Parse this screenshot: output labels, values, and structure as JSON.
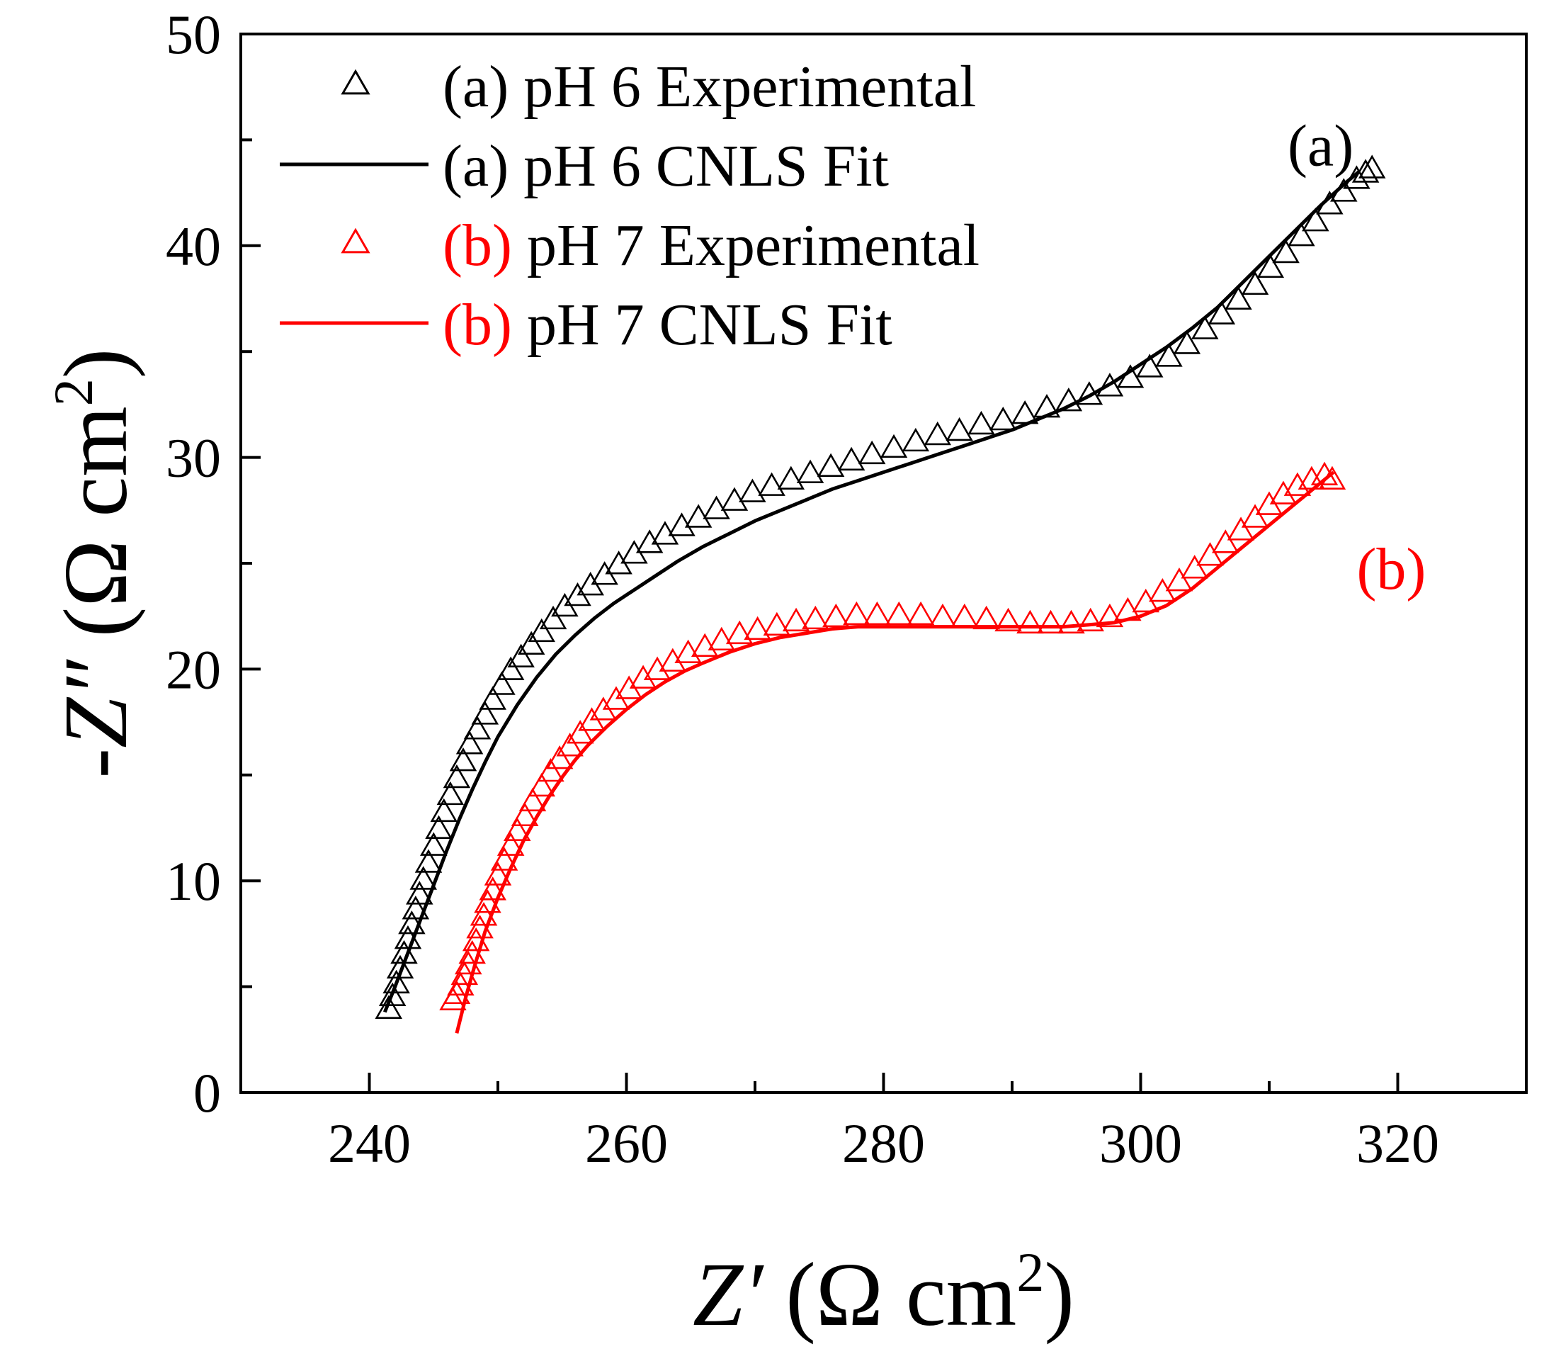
{
  "chart_data": {
    "type": "scatter",
    "title": "",
    "xlabel": "Z′ (Ω cm2)",
    "ylabel": "-Z″ (Ω cm2)",
    "xlabel_parts": {
      "var": "Z′",
      "paren_open": " (Ω cm",
      "sup": "2",
      "paren_close": ")"
    },
    "ylabel_parts": {
      "var": "-Z″",
      "paren_open": " (Ω cm",
      "sup": "2",
      "paren_close": ")"
    },
    "xlim": [
      230,
      330
    ],
    "ylim": [
      0,
      50
    ],
    "x_ticks": [
      240,
      260,
      280,
      300,
      320
    ],
    "y_ticks": [
      0,
      10,
      20,
      30,
      40,
      50
    ],
    "x_tick_labels": [
      "240",
      "260",
      "280",
      "300",
      "320"
    ],
    "y_tick_labels": [
      "0",
      "10",
      "20",
      "30",
      "40",
      "50"
    ],
    "grid": false,
    "legend_position": "top-left",
    "legend": [
      {
        "tag": "(a)",
        "text": " pH 6 Experimental",
        "color": "#000000",
        "tag_color": "#000000",
        "marker": "triangle-open"
      },
      {
        "tag": "(a)",
        "text": " pH 6 CNLS Fit",
        "color": "#000000",
        "tag_color": "#000000",
        "marker": "line"
      },
      {
        "tag": "(b)",
        "text": " pH 7 Experimental",
        "color": "#ff0000",
        "tag_color": "#ff0000",
        "marker": "triangle-open"
      },
      {
        "tag": "(b)",
        "text": " pH 7 CNLS Fit",
        "color": "#ff0000",
        "tag_color": "#ff0000",
        "marker": "line"
      }
    ],
    "annotations": [
      {
        "text": "(a)",
        "x": 314,
        "y": 43.8,
        "color": "#000000"
      },
      {
        "text": "(b)",
        "x": 319.5,
        "y": 23.8,
        "color": "#ff0000"
      }
    ],
    "series": [
      {
        "name": "(a) pH 6 Experimental",
        "kind": "markers",
        "color": "#000000",
        "x": [
          241.5,
          241.8,
          242.1,
          242.4,
          242.7,
          243.0,
          243.3,
          243.6,
          243.9,
          244.2,
          244.6,
          245.0,
          245.4,
          245.8,
          246.3,
          246.8,
          247.3,
          247.8,
          248.4,
          249.0,
          249.6,
          250.3,
          251.0,
          251.8,
          252.6,
          253.4,
          254.3,
          255.2,
          256.2,
          257.2,
          258.3,
          259.4,
          260.6,
          261.8,
          263.0,
          264.3,
          265.6,
          267.0,
          268.4,
          269.8,
          271.3,
          272.8,
          274.3,
          275.9,
          277.5,
          279.1,
          280.8,
          282.5,
          284.2,
          285.9,
          287.6,
          289.3,
          291.0,
          292.7,
          294.4,
          296.0,
          297.6,
          299.2,
          300.7,
          302.2,
          303.6,
          305.0,
          306.3,
          307.6,
          308.9,
          310.1,
          311.3,
          312.5,
          313.6,
          314.7,
          315.8,
          316.8,
          317.5,
          318.0
        ],
        "y": [
          3.9,
          4.5,
          5.1,
          5.8,
          6.5,
          7.2,
          7.9,
          8.6,
          9.3,
          10.0,
          10.8,
          11.6,
          12.4,
          13.2,
          14.0,
          14.8,
          15.6,
          16.4,
          17.1,
          17.8,
          18.5,
          19.2,
          19.9,
          20.5,
          21.1,
          21.7,
          22.3,
          22.9,
          23.4,
          23.9,
          24.4,
          24.9,
          25.4,
          25.9,
          26.3,
          26.7,
          27.1,
          27.5,
          27.9,
          28.3,
          28.6,
          28.9,
          29.2,
          29.5,
          29.8,
          30.1,
          30.4,
          30.7,
          31.0,
          31.2,
          31.5,
          31.7,
          32.0,
          32.3,
          32.6,
          32.9,
          33.3,
          33.7,
          34.2,
          34.7,
          35.3,
          36.0,
          36.7,
          37.4,
          38.1,
          38.9,
          39.6,
          40.4,
          41.1,
          41.9,
          42.5,
          43.1,
          43.4,
          43.6
        ]
      },
      {
        "name": "(a) pH 6 CNLS Fit",
        "kind": "line",
        "color": "#000000",
        "x": [
          241.2,
          242.0,
          243.0,
          244.0,
          245.0,
          246.0,
          247.0,
          248.0,
          249.0,
          250.0,
          251.5,
          253.0,
          254.5,
          256.0,
          257.5,
          259.0,
          260.5,
          262.0,
          264.0,
          266.0,
          268.0,
          270.0,
          272.0,
          274.0,
          276.0,
          278.0,
          280.0,
          282.0,
          284.0,
          286.0,
          288.0,
          290.0,
          292.0,
          294.0,
          296.0,
          298.0,
          300.0,
          302.0,
          304.0,
          306.0,
          308.0,
          310.0,
          312.0,
          314.0,
          316.0,
          317.0
        ],
        "y": [
          3.8,
          5.0,
          6.6,
          8.2,
          9.8,
          11.4,
          12.9,
          14.3,
          15.6,
          16.8,
          18.3,
          19.6,
          20.7,
          21.6,
          22.4,
          23.1,
          23.7,
          24.3,
          25.1,
          25.8,
          26.4,
          27.0,
          27.5,
          28.0,
          28.5,
          28.9,
          29.3,
          29.7,
          30.1,
          30.5,
          30.9,
          31.3,
          31.8,
          32.3,
          32.9,
          33.6,
          34.4,
          35.2,
          36.1,
          37.1,
          38.3,
          39.5,
          40.7,
          41.9,
          43.0,
          43.5
        ]
      },
      {
        "name": "(b) pH 7 Experimental",
        "kind": "markers",
        "color": "#ff0000",
        "x": [
          246.5,
          246.8,
          247.1,
          247.4,
          247.7,
          248.0,
          248.3,
          248.6,
          248.9,
          249.2,
          249.6,
          250.0,
          250.5,
          251.0,
          251.5,
          252.1,
          252.7,
          253.4,
          254.1,
          254.8,
          255.6,
          256.4,
          257.3,
          258.2,
          259.2,
          260.2,
          261.3,
          262.4,
          263.6,
          264.8,
          266.1,
          267.4,
          268.8,
          270.2,
          271.7,
          273.2,
          274.7,
          276.3,
          277.9,
          279.5,
          281.2,
          282.9,
          284.6,
          286.3,
          288.0,
          289.7,
          291.4,
          293.0,
          294.6,
          296.1,
          297.6,
          299.0,
          300.4,
          301.7,
          303.0,
          304.2,
          305.4,
          306.6,
          307.8,
          308.9,
          310.0,
          311.1,
          312.2,
          313.3,
          314.3,
          314.9
        ],
        "y": [
          4.3,
          4.6,
          5.0,
          5.5,
          6.0,
          6.5,
          7.1,
          7.7,
          8.3,
          8.9,
          9.5,
          10.2,
          10.9,
          11.6,
          12.3,
          13.0,
          13.7,
          14.4,
          15.1,
          15.7,
          16.3,
          16.9,
          17.5,
          18.0,
          18.5,
          19.0,
          19.5,
          19.9,
          20.3,
          20.7,
          21.0,
          21.3,
          21.6,
          21.8,
          22.0,
          22.2,
          22.3,
          22.4,
          22.5,
          22.5,
          22.5,
          22.5,
          22.4,
          22.4,
          22.3,
          22.2,
          22.1,
          22.1,
          22.1,
          22.2,
          22.4,
          22.7,
          23.1,
          23.6,
          24.1,
          24.7,
          25.3,
          25.9,
          26.5,
          27.1,
          27.7,
          28.2,
          28.6,
          28.9,
          29.1,
          28.9
        ]
      },
      {
        "name": "(b) pH 7 CNLS Fit",
        "kind": "line",
        "color": "#ff0000",
        "x": [
          246.8,
          247.5,
          248.2,
          249.0,
          250.0,
          251.0,
          252.0,
          253.0,
          254.0,
          255.0,
          256.0,
          257.0,
          258.5,
          260.0,
          261.5,
          263.0,
          264.5,
          266.0,
          268.0,
          270.0,
          272.0,
          274.0,
          276.0,
          278.0,
          280.0,
          282.0,
          284.0,
          286.0,
          288.0,
          290.0,
          292.0,
          294.0,
          296.0,
          298.0,
          300.0,
          302.0,
          304.0,
          306.0,
          308.0,
          310.0,
          312.0,
          314.0,
          315.0
        ],
        "y": [
          2.8,
          4.5,
          6.0,
          7.6,
          9.2,
          10.6,
          11.9,
          13.0,
          14.0,
          14.9,
          15.7,
          16.4,
          17.3,
          18.1,
          18.8,
          19.4,
          19.9,
          20.3,
          20.8,
          21.2,
          21.5,
          21.7,
          21.9,
          22.0,
          22.0,
          22.0,
          22.0,
          22.0,
          22.0,
          22.0,
          22.0,
          22.0,
          22.1,
          22.2,
          22.5,
          23.0,
          23.8,
          24.8,
          25.8,
          26.8,
          27.8,
          28.8,
          29.3
        ]
      }
    ]
  }
}
